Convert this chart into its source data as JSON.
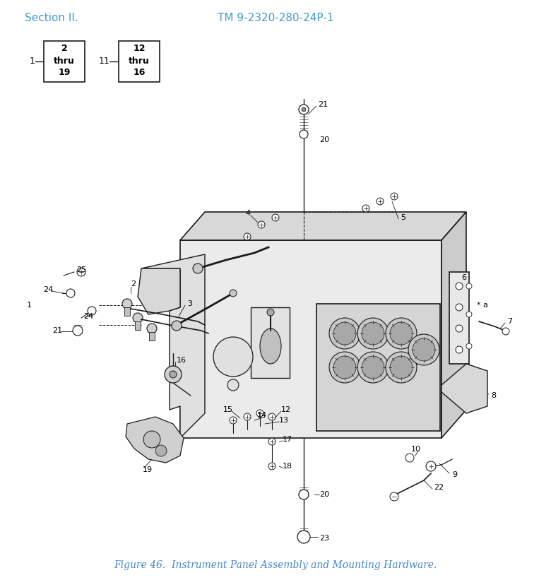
{
  "title_left": "Section II.",
  "title_right": "TM 9-2320-280-24P-1",
  "caption": "Figure 46.  Instrument Panel Assembly and Mounting Hardware.",
  "title_color": "#4499cc",
  "caption_color": "#4488cc",
  "bg_color": "#ffffff",
  "highlight_color": "#ffff00",
  "line_color": "#1a1a1a",
  "fig_w": 7.8,
  "fig_h": 8.21
}
